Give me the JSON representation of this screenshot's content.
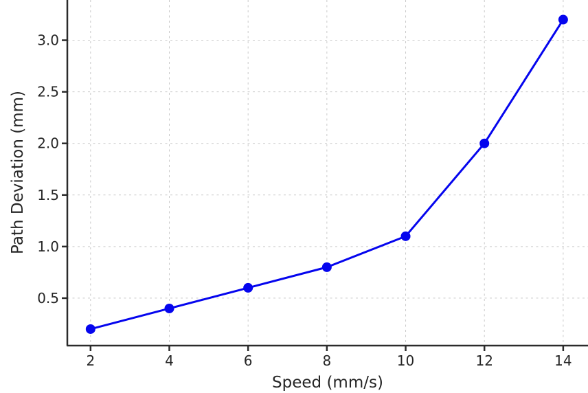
{
  "chart_data": {
    "type": "line",
    "title": "",
    "xlabel": "Speed (mm/s)",
    "ylabel": "Path Deviation (mm)",
    "x": [
      2,
      4,
      6,
      8,
      10,
      12,
      14
    ],
    "y": [
      0.2,
      0.4,
      0.6,
      0.8,
      1.1,
      2.0,
      3.2
    ],
    "x_tick_labels": [
      "2",
      "4",
      "6",
      "8",
      "10",
      "12",
      "14"
    ],
    "y_tick_labels": [
      "0.5",
      "1.0",
      "1.5",
      "2.0",
      "2.5",
      "3.0"
    ],
    "x_ticks": [
      2,
      4,
      6,
      8,
      10,
      12,
      14
    ],
    "y_ticks": [
      0.5,
      1.0,
      1.5,
      2.0,
      2.5,
      3.0
    ],
    "xlim": [
      1.41,
      14.63
    ],
    "ylim": [
      0.04,
      3.39
    ],
    "grid": true,
    "grid_style": "dashed",
    "legend_position": "none",
    "colors": {
      "line": "#0505EE",
      "marker": "#0505EE",
      "grid": "#c9c9c9",
      "axis": "#2b2b2b",
      "text": "#262626",
      "background": "#ffffff"
    }
  }
}
